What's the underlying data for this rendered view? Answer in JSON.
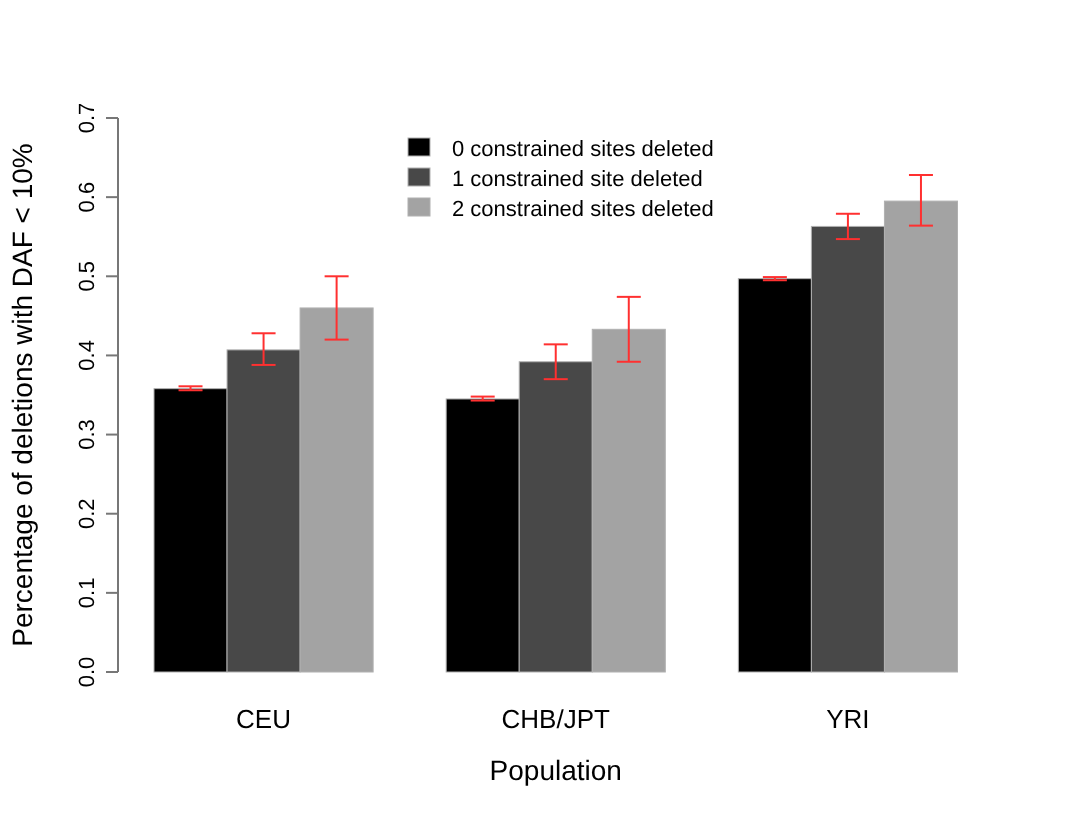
{
  "chart_data": {
    "type": "bar",
    "xlabel": "Population",
    "ylabel": "Percentage of deletions with DAF < 10%",
    "categories": [
      "CEU",
      "CHB/JPT",
      "YRI"
    ],
    "series": [
      {
        "name": "0 constrained sites deleted",
        "color": "#000000",
        "values": [
          0.358,
          0.345,
          0.497
        ],
        "errors": [
          [
            0.356,
            0.361
          ],
          [
            0.343,
            0.348
          ],
          [
            0.495,
            0.499
          ]
        ]
      },
      {
        "name": "1 constrained site deleted",
        "color": "#484848",
        "values": [
          0.407,
          0.392,
          0.563
        ],
        "errors": [
          [
            0.388,
            0.428
          ],
          [
            0.37,
            0.414
          ],
          [
            0.547,
            0.579
          ]
        ]
      },
      {
        "name": "2 constrained sites deleted",
        "color": "#a3a3a3",
        "values": [
          0.46,
          0.433,
          0.595
        ],
        "errors": [
          [
            0.42,
            0.5
          ],
          [
            0.392,
            0.474
          ],
          [
            0.564,
            0.628
          ]
        ]
      }
    ],
    "ylim": [
      0,
      0.7
    ],
    "yticks": [
      {
        "value": 0,
        "label": "0.0"
      },
      0.1,
      0.2,
      0.3,
      0.4,
      0.5,
      0.6,
      0.7
    ],
    "legend": "top",
    "grid": false
  }
}
